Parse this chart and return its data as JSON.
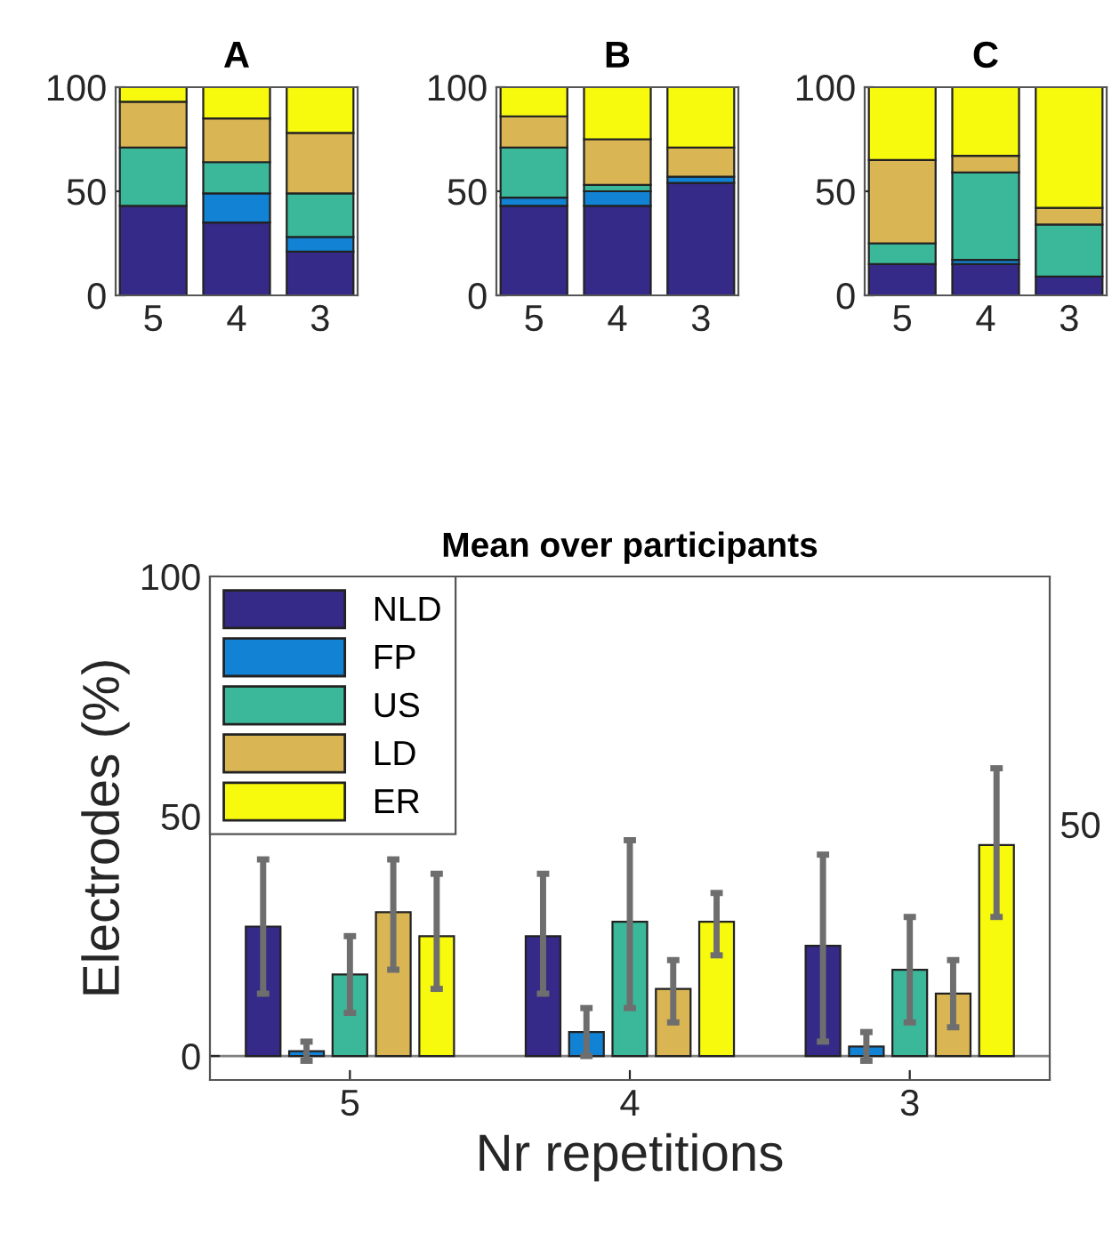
{
  "chart_data": [
    {
      "type": "bar",
      "title": "A",
      "stacked": true,
      "categories": [
        "5",
        "4",
        "3"
      ],
      "ylim": [
        0,
        100
      ],
      "yticks": [
        0,
        50,
        100
      ],
      "grid": false,
      "series": [
        {
          "color": "#352a87",
          "values": [
            43,
            35,
            21
          ]
        },
        {
          "color": "#1283d4",
          "values": [
            null,
            14,
            7
          ]
        },
        {
          "color": "#3bb89a",
          "values": [
            28,
            15,
            21
          ]
        },
        {
          "color": "#d9b653",
          "values": [
            22,
            21,
            29
          ]
        },
        {
          "color": "#f8fa0d",
          "values": [
            7,
            15,
            22
          ]
        }
      ]
    },
    {
      "type": "bar",
      "title": "B",
      "stacked": true,
      "categories": [
        "5",
        "4",
        "3"
      ],
      "ylim": [
        0,
        100
      ],
      "yticks": [
        0,
        50,
        100
      ],
      "grid": false,
      "series": [
        {
          "color": "#352a87",
          "values": [
            43,
            43,
            54
          ]
        },
        {
          "color": "#1283d4",
          "values": [
            4,
            7,
            3
          ]
        },
        {
          "color": "#3bb89a",
          "values": [
            24,
            3,
            null
          ]
        },
        {
          "color": "#d9b653",
          "values": [
            15,
            22,
            14
          ]
        },
        {
          "color": "#f8fa0d",
          "values": [
            14,
            25,
            29
          ]
        }
      ]
    },
    {
      "type": "bar",
      "title": "C",
      "stacked": true,
      "categories": [
        "5",
        "4",
        "3"
      ],
      "ylim": [
        0,
        100
      ],
      "yticks": [
        0,
        50,
        100
      ],
      "grid": false,
      "series": [
        {
          "color": "#352a87",
          "values": [
            15,
            15,
            9
          ]
        },
        {
          "color": "#1283d4",
          "values": [
            null,
            2,
            null
          ]
        },
        {
          "color": "#3bb89a",
          "values": [
            10,
            42,
            25
          ]
        },
        {
          "color": "#d9b653",
          "values": [
            40,
            8,
            8
          ]
        },
        {
          "color": "#f8fa0d",
          "values": [
            35,
            33,
            58
          ]
        }
      ]
    },
    {
      "type": "bar",
      "title": "Mean over participants",
      "xlabel": "Nr repetitions",
      "ylabel": "Electrodes (%)",
      "categories": [
        "5",
        "4",
        "3"
      ],
      "ylim": [
        -5,
        100
      ],
      "yticks": [
        0,
        50,
        100
      ],
      "grid": false,
      "legend": "top left",
      "annotations": [
        "50"
      ],
      "ref_lines": [
        {
          "axis": "y",
          "value": 0,
          "color": "#808080"
        }
      ],
      "series": [
        {
          "name": "NLD",
          "color": "#352a87",
          "values": [
            27,
            25,
            23
          ],
          "errors": [
            [
              13,
              41
            ],
            [
              13,
              38
            ],
            [
              3,
              42
            ]
          ]
        },
        {
          "name": "FP",
          "color": "#1283d4",
          "values": [
            1,
            5,
            2
          ],
          "errors": [
            [
              -1,
              3
            ],
            [
              0,
              10
            ],
            [
              -1,
              5
            ]
          ]
        },
        {
          "name": "US",
          "color": "#3bb89a",
          "values": [
            17,
            28,
            18
          ],
          "errors": [
            [
              9,
              25
            ],
            [
              10,
              45
            ],
            [
              7,
              29
            ]
          ]
        },
        {
          "name": "LD",
          "color": "#d9b653",
          "values": [
            30,
            14,
            13
          ],
          "errors": [
            [
              18,
              41
            ],
            [
              7,
              20
            ],
            [
              6,
              20
            ]
          ]
        },
        {
          "name": "ER",
          "color": "#f8fa0d",
          "values": [
            25,
            28,
            44
          ],
          "errors": [
            [
              14,
              38
            ],
            [
              21,
              34
            ],
            [
              29,
              60
            ]
          ]
        }
      ]
    }
  ]
}
